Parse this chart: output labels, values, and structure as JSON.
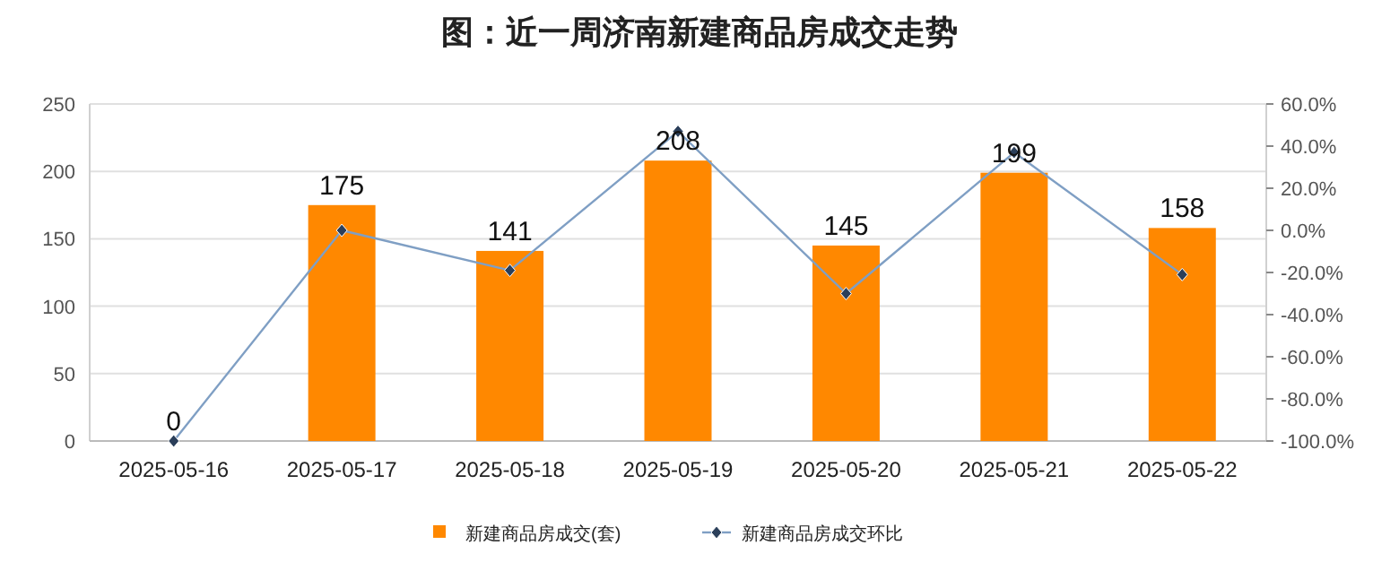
{
  "chart_data": {
    "type": "bar",
    "title": "图：近一周济南新建商品房成交走势",
    "categories": [
      "2025-05-16",
      "2025-05-17",
      "2025-05-18",
      "2025-05-19",
      "2025-05-20",
      "2025-05-21",
      "2025-05-22"
    ],
    "series": [
      {
        "name": "新建商品房成交(套)",
        "color": "#ff8800",
        "values": [
          0,
          175,
          141,
          208,
          145,
          199,
          158
        ],
        "value_labels": [
          "0",
          "175",
          "141",
          "208",
          "145",
          "199",
          "158"
        ]
      },
      {
        "name": "新建商品房成交环比",
        "type": "line",
        "axis": "y2",
        "color": "#7f9fc4",
        "marker": "diamond",
        "values": [
          -100,
          0,
          -19,
          47,
          -30,
          37,
          -21
        ]
      }
    ],
    "ylim": [
      0,
      250
    ],
    "yticks": [
      0,
      50,
      100,
      150,
      200,
      250
    ],
    "y2lim": [
      -100,
      60
    ],
    "y2ticks": [
      {
        "value": -100,
        "label": "-100.0%"
      },
      {
        "value": -80,
        "label": "-80.0%"
      },
      {
        "value": -60,
        "label": "-60.0%"
      },
      {
        "value": -40,
        "label": "-40.0%"
      },
      {
        "value": -20,
        "label": "-20.0%"
      },
      {
        "value": 0,
        "label": "0.0%"
      },
      {
        "value": 20,
        "label": "20.0%"
      },
      {
        "value": 40,
        "label": "40.0%"
      },
      {
        "value": 60,
        "label": "60.0%"
      }
    ],
    "grid": "y",
    "legend": "bottom"
  }
}
